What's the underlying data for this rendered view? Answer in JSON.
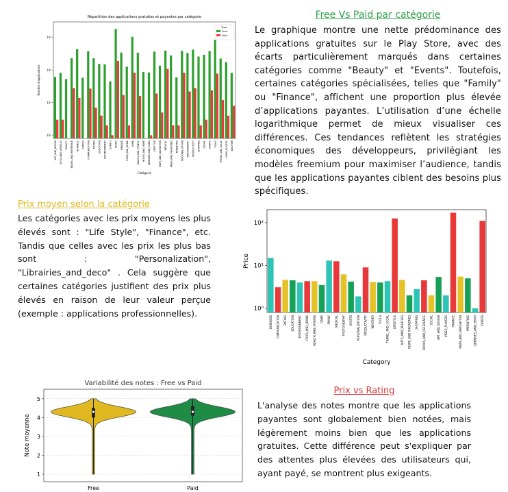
{
  "section1": {
    "heading": "Free Vs Paid par catégorie",
    "heading_color": "#2e9e4a",
    "text": "Le graphique montre une nette prédominance des applications gratuites sur le Play Store, avec des écarts particulièrement marqués dans certaines catégories comme \"Beauty\" et \"Events\". Toutefois, certaines catégories spécialisées, telles que \"Family\" ou \"Finance\", affichent une proportion plus élevée d’applications payantes. L’utilisation d’une échelle logarithmique permet de mieux visualiser ces différences. Ces tendances reflètent les stratégies économiques des développeurs, privilégiant les modèles freemium pour maximiser l’audience, tandis que les applications payantes ciblent des besoins plus spécifiques."
  },
  "section2": {
    "heading": "Prix moyen selon la catégorie",
    "heading_color": "#e0b81f",
    "text": "Les catégories avec les prix moyens les plus élevés sont : \"Life Style\", \"Finance\", etc. Tandis que celles avec les prix les plus bas sont : \"Personalization\", \"Librairies_and_deco\" . Cela suggère que certaines catégories justifient des prix plus élevés en raison de leur valeur perçue (exemple : applications professionnelles)."
  },
  "section3": {
    "heading": "Prix vs Rating",
    "heading_color": "#d93434",
    "text": "L'analyse des notes montre que les applications payantes sont globalement bien notées, mais légèrement moins bien que les applications gratuites. Cette différence peut s'expliquer par des attentes plus élevées des utilisateurs qui, ayant payé, se montrent plus exigeants."
  },
  "chart_data": [
    {
      "type": "bar",
      "title": "Répartition des applications gratuites et payantes par catégorie",
      "xlabel": "Catégorie",
      "ylabel": "Nombre d'applications",
      "yscale": "log",
      "ylim": [
        0.8,
        3000
      ],
      "yticks": [
        "10⁰",
        "10¹",
        "10²",
        "10³"
      ],
      "legend_title": "Type",
      "legend_position": "top-right",
      "colors": {
        "Free": "#2ca02c",
        "Paid": "#e8393a"
      },
      "categories": [
        "ART_AND_DESIGN",
        "AUTO_AND_VEHICLES",
        "BEAUTY",
        "BOOKS_AND_REFERENCE",
        "BUSINESS",
        "COMICS",
        "COMMUNICATION",
        "DATING",
        "EDUCATION",
        "ENTERTAINMENT",
        "EVENTS",
        "FAMILY",
        "FINANCE",
        "FOOD_AND_DRINK",
        "GAME",
        "HEALTH_AND_FITNESS",
        "HOUSE_AND_HOME",
        "LIBRARIES_AND_DEMO",
        "LIFESTYLE",
        "MAPS_AND_NAVIGATION",
        "MEDICAL",
        "NEWS_AND_MAGAZINES",
        "PARENTING",
        "PERSONALIZATION",
        "PHOTOGRAPHY",
        "PRODUCTIVITY",
        "SHOPPING",
        "SOCIAL",
        "SPORTS",
        "TOOLS",
        "TRAVEL_AND_LOCAL",
        "VIDEO_PLAYERS",
        "WEATHER"
      ],
      "series": [
        {
          "name": "Free",
          "values": [
            62,
            82,
            53,
            230,
            440,
            58,
            380,
            230,
            155,
            149,
            45,
            1832,
            345,
            126,
            1050,
            341,
            88,
            84,
            370,
            137,
            395,
            281,
            60,
            390,
            335,
            424,
            260,
            295,
            384,
            843,
            226,
            175,
            82
          ]
        },
        {
          "name": "Paid",
          "values": [
            3,
            3,
            0,
            28,
            14,
            0,
            27,
            7,
            4,
            2,
            1,
            191,
            17,
            2,
            83,
            16,
            0,
            1,
            19,
            5,
            109,
            2,
            2,
            83,
            22,
            28,
            2,
            3,
            24,
            78,
            12,
            4,
            8
          ]
        }
      ]
    },
    {
      "type": "bar",
      "xlabel": "Category",
      "ylabel": "Price",
      "yscale": "log",
      "ylim": [
        0.8,
        200
      ],
      "yticks": [
        "10⁰",
        "10¹",
        "10²"
      ],
      "categories": [
        "BUSINESS",
        "COMMUNICATION",
        "DATING",
        "EDUCATION",
        "ENTERTAINMENT",
        "FOOD_AND_DRINK",
        "HEALTH_AND_FITNESS",
        "GAME",
        "FAMILY",
        "MEDICAL",
        "PHOTOGRAPHY",
        "SPORTS",
        "PERSONALIZATION",
        "PRODUCTIVITY",
        "WEATHER",
        "TOOLS",
        "TRAVEL_AND_LOCAL",
        "LIFESTYLE",
        "AUTO_AND_VEHICLES",
        "NEWS_AND_MAGAZINES",
        "SHOPPING",
        "BOOKS_AND_REFERENCE",
        "SOCIAL",
        "ART_AND_DESIGN",
        "VIDEO_PLAYERS",
        "FINANCE",
        "MAPS_AND_NAVIGATION",
        "PARENTING",
        "LIBRARIES_AND_DEMO",
        "EVENTS"
      ],
      "values": [
        15,
        3.1,
        4.6,
        4.5,
        4.0,
        4.3,
        4.3,
        3.5,
        13,
        12.5,
        6.2,
        4.2,
        1.9,
        9.0,
        4.1,
        4.0,
        4.3,
        125,
        4.6,
        2.0,
        2.8,
        4.5,
        2.0,
        5.4,
        2.0,
        170,
        5.5,
        5.0,
        1.0,
        110
      ],
      "colors": [
        "#2ec4b6",
        "#e8393a",
        "#e6c229",
        "#17a057",
        "#2ec4b6",
        "#e8393a",
        "#e6c229",
        "#17a057",
        "#2ec4b6",
        "#e8393a",
        "#e6c229",
        "#17a057",
        "#2ec4b6",
        "#e8393a",
        "#e6c229",
        "#17a057",
        "#2ec4b6",
        "#e8393a",
        "#e6c229",
        "#17a057",
        "#2ec4b6",
        "#e8393a",
        "#e6c229",
        "#17a057",
        "#2ec4b6",
        "#e8393a",
        "#e6c229",
        "#17a057",
        "#2ec4b6",
        "#e8393a"
      ]
    },
    {
      "type": "violin",
      "title": "Variabilité des notes : Free vs Paid",
      "xlabel": "",
      "ylabel": "Note moyenne",
      "ylim": [
        0.6,
        5.5
      ],
      "yticks": [
        "1",
        "2",
        "3",
        "4",
        "5"
      ],
      "categories": [
        "Free",
        "Paid"
      ],
      "series": [
        {
          "name": "Free",
          "color": "#e0b81f",
          "min": 1.0,
          "q1": 4.0,
          "median": 4.3,
          "q3": 4.5,
          "max": 5.0
        },
        {
          "name": "Paid",
          "color": "#1e8c45",
          "min": 1.0,
          "q1": 4.1,
          "median": 4.3,
          "q3": 4.6,
          "max": 5.0
        }
      ]
    }
  ]
}
